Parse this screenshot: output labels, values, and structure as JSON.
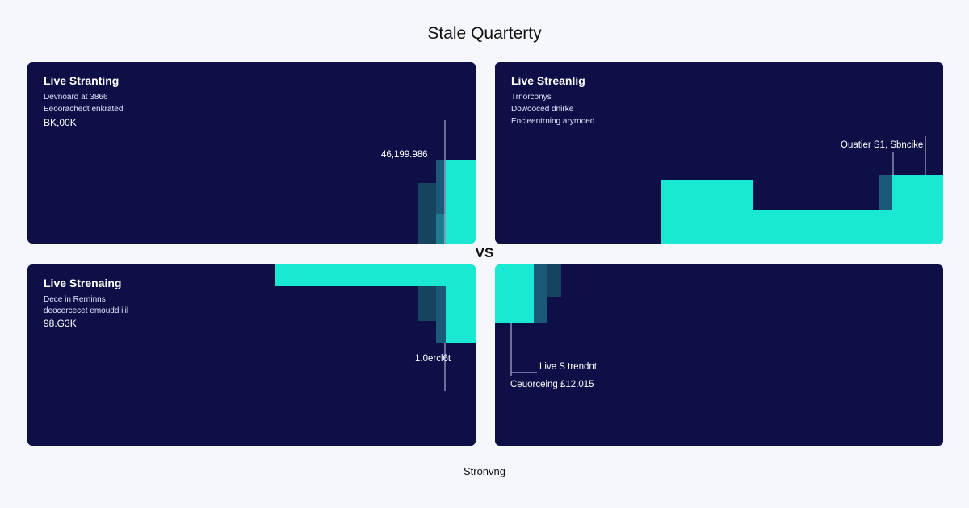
{
  "page": {
    "title": "Stale Quarterty",
    "vs_label": "VS",
    "footer": "Stronvng"
  },
  "colors": {
    "background": "#f6f7fc",
    "panel": "#0d0f46",
    "accent": "#19e8d2",
    "accent_dark": "#16445f"
  },
  "panels": [
    {
      "title": "Live Stranting",
      "subtitle1": "Devnoard at 3866",
      "subtitle2": "Eeoorachedt enkrated",
      "value": "BK,00K",
      "annotation": "46,199.986"
    },
    {
      "title": "Live Streanlig",
      "subtitle1": "Trnorconys",
      "subtitle2": "Dowooced dnirke",
      "subtitle3": "Encleentrning aryrnoed",
      "annotation": "Ouatier S1, Sbncike"
    },
    {
      "title": "Live Strenaing",
      "subtitle1": "Dece in Rerninns",
      "subtitle2": "deocercecet emoudd iiil",
      "value": "98.G3K",
      "annotation": "1.0ercl6t"
    },
    {
      "annotation": "Live S trendnt",
      "annotation2": "Ceuorceing £12.015"
    }
  ]
}
